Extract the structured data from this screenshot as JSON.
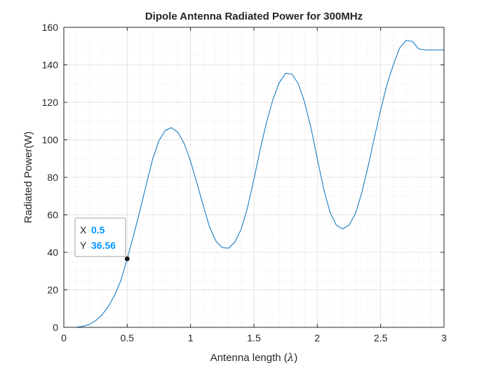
{
  "chart_data": {
    "type": "line",
    "title": "Dipole Antenna Radiated Power for 300MHz",
    "xlabel_text": "Antenna length (",
    "xlabel_symbol": "λ",
    "xlabel_close": ")",
    "ylabel": "Radiated Power(W)",
    "xlim": [
      0,
      3
    ],
    "ylim": [
      0,
      160
    ],
    "grid": true,
    "minor_grid": true,
    "x_ticks": [
      0,
      0.5,
      1,
      1.5,
      2,
      2.5,
      3
    ],
    "x_tick_labels": [
      "0",
      "0.5",
      "1",
      "1.5",
      "2",
      "2.5",
      "3"
    ],
    "y_ticks": [
      0,
      20,
      40,
      60,
      80,
      100,
      120,
      140,
      160
    ],
    "y_tick_labels": [
      "0",
      "20",
      "40",
      "60",
      "80",
      "100",
      "120",
      "140",
      "160"
    ],
    "series": [
      {
        "color": "#0072BD",
        "x": [
          0.1,
          0.15,
          0.2,
          0.25,
          0.3,
          0.35,
          0.4,
          0.45,
          0.5,
          0.55,
          0.6,
          0.65,
          0.7,
          0.75,
          0.8,
          0.85,
          0.9,
          0.95,
          1.0,
          1.05,
          1.1,
          1.15,
          1.2,
          1.25,
          1.3,
          1.35,
          1.4,
          1.45,
          1.5,
          1.55,
          1.6,
          1.65,
          1.7,
          1.75,
          1.8,
          1.85,
          1.9,
          1.95,
          2.0,
          2.05,
          2.1,
          2.15,
          2.2,
          2.25,
          2.3,
          2.35,
          2.4,
          2.45,
          2.5,
          2.55,
          2.6,
          2.65,
          2.7,
          2.75,
          2.8,
          2.85,
          2.9,
          2.95,
          3.0
        ],
        "y": [
          0.1,
          0.5,
          1.5,
          3.5,
          6.5,
          11,
          17,
          25,
          36.56,
          49,
          62,
          76,
          89.5,
          99.5,
          105,
          106.5,
          104,
          98,
          88.5,
          77,
          65,
          53.5,
          46,
          42.5,
          42.2,
          45.5,
          52.5,
          64,
          79,
          95,
          109.5,
          121.5,
          130.5,
          135.5,
          135,
          130,
          120,
          106.5,
          90,
          74,
          61.5,
          54.5,
          52.5,
          54.5,
          60.5,
          71.5,
          85.5,
          101,
          116,
          129.5,
          140,
          149,
          153,
          152.5,
          148.5,
          148,
          148,
          148,
          148
        ]
      }
    ],
    "datatip": {
      "x_label": "X",
      "x_value": "0.5",
      "y_label": "Y",
      "y_value": "36.56",
      "point_x": 0.5,
      "point_y": 36.56,
      "value_color": "#0096FF"
    }
  }
}
